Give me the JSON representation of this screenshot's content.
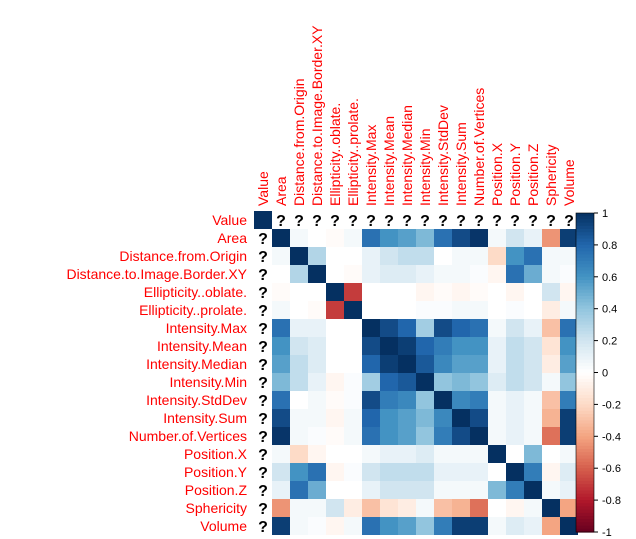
{
  "chart_data": {
    "type": "heatmap",
    "title": "",
    "labels": [
      "Value",
      "Area",
      "Distance.from.Origin",
      "Distance.to.Image.Border.XY",
      "Ellipticity..oblate.",
      "Ellipticity..prolate.",
      "Intensity.Max",
      "Intensity.Mean",
      "Intensity.Median",
      "Intensity.Min",
      "Intensity.StdDev",
      "Intensity.Sum",
      "Number.of.Vertices",
      "Position.X",
      "Position.Y",
      "Position.Z",
      "Sphericity",
      "Volume"
    ],
    "missing_symbol": "?",
    "missing_diagonal_value": 1,
    "matrix": [
      [
        1,
        null,
        null,
        null,
        null,
        null,
        null,
        null,
        null,
        null,
        null,
        null,
        null,
        null,
        null,
        null,
        null,
        null
      ],
      [
        null,
        1,
        0.05,
        0.0,
        -0.02,
        0.05,
        0.75,
        0.6,
        0.55,
        0.45,
        0.75,
        0.9,
        0.98,
        0.05,
        0.2,
        0.1,
        -0.45,
        0.95
      ],
      [
        null,
        0.05,
        1,
        0.3,
        0.0,
        0.0,
        0.1,
        0.2,
        0.25,
        0.25,
        0.0,
        0.05,
        0.05,
        -0.2,
        0.6,
        0.75,
        0.05,
        0.05
      ],
      [
        null,
        0.0,
        0.3,
        1,
        0.0,
        -0.02,
        0.1,
        0.15,
        0.15,
        0.1,
        0.05,
        0.05,
        0.02,
        -0.05,
        0.75,
        0.5,
        0.05,
        0.02
      ],
      [
        null,
        -0.02,
        0.0,
        0.0,
        1,
        -0.7,
        0.0,
        0.0,
        0.0,
        -0.05,
        -0.02,
        -0.05,
        -0.02,
        0.0,
        -0.05,
        0.0,
        0.2,
        -0.05
      ],
      [
        null,
        0.05,
        0.0,
        -0.02,
        -0.7,
        1,
        0.0,
        0.0,
        0.0,
        0.02,
        0.02,
        0.05,
        0.05,
        0.0,
        0.02,
        0.0,
        -0.1,
        0.05
      ],
      [
        null,
        0.75,
        0.1,
        0.1,
        0.0,
        0.0,
        1,
        0.9,
        0.8,
        0.35,
        0.9,
        0.8,
        0.75,
        0.05,
        0.2,
        0.1,
        -0.3,
        0.75
      ],
      [
        null,
        0.6,
        0.2,
        0.15,
        0.0,
        0.0,
        0.9,
        1,
        0.95,
        0.8,
        0.7,
        0.6,
        0.6,
        0.1,
        0.25,
        0.2,
        -0.15,
        0.6
      ],
      [
        null,
        0.55,
        0.25,
        0.15,
        0.0,
        0.0,
        0.8,
        0.95,
        1,
        0.85,
        0.65,
        0.55,
        0.55,
        0.1,
        0.25,
        0.2,
        -0.1,
        0.55
      ],
      [
        null,
        0.45,
        0.25,
        0.1,
        -0.05,
        0.02,
        0.35,
        0.8,
        0.85,
        1,
        0.4,
        0.45,
        0.4,
        0.15,
        0.25,
        0.2,
        0.05,
        0.4
      ],
      [
        null,
        0.75,
        0.0,
        0.05,
        -0.02,
        0.02,
        0.9,
        0.7,
        0.65,
        0.4,
        1,
        0.65,
        0.7,
        0.05,
        0.1,
        0.05,
        -0.3,
        0.7
      ],
      [
        null,
        0.9,
        0.05,
        0.05,
        -0.05,
        0.05,
        0.8,
        0.6,
        0.55,
        0.45,
        0.65,
        1,
        0.9,
        0.05,
        0.1,
        0.05,
        -0.35,
        0.95
      ],
      [
        null,
        0.98,
        0.05,
        0.02,
        -0.02,
        0.05,
        0.75,
        0.6,
        0.55,
        0.4,
        0.7,
        0.9,
        1,
        0.05,
        0.1,
        0.05,
        -0.55,
        0.95
      ],
      [
        null,
        0.05,
        -0.2,
        -0.05,
        0.0,
        0.0,
        0.05,
        0.1,
        0.1,
        0.15,
        0.05,
        0.05,
        0.05,
        1,
        0.0,
        0.45,
        0.0,
        0.05
      ],
      [
        null,
        0.2,
        0.6,
        0.75,
        -0.05,
        0.02,
        0.2,
        0.25,
        0.25,
        0.25,
        0.1,
        0.1,
        0.1,
        0.0,
        1,
        0.7,
        -0.05,
        0.15
      ],
      [
        null,
        0.1,
        0.75,
        0.5,
        0.0,
        0.0,
        0.1,
        0.2,
        0.2,
        0.2,
        0.05,
        0.05,
        0.05,
        0.45,
        0.7,
        1,
        0.05,
        0.1
      ],
      [
        null,
        -0.45,
        0.05,
        0.05,
        0.2,
        -0.1,
        -0.3,
        -0.15,
        -0.1,
        0.05,
        -0.3,
        -0.35,
        -0.55,
        0.0,
        -0.05,
        0.05,
        1,
        -0.4
      ],
      [
        null,
        0.95,
        0.05,
        0.02,
        -0.05,
        0.05,
        0.75,
        0.6,
        0.55,
        0.4,
        0.7,
        0.95,
        0.95,
        0.05,
        0.15,
        0.1,
        -0.4,
        1
      ]
    ],
    "color_scale": {
      "range": [
        -1,
        1
      ],
      "ticks": [
        -1,
        -0.8,
        -0.6,
        -0.4,
        -0.2,
        0,
        0.2,
        0.4,
        0.6,
        0.8,
        1
      ],
      "tick_labels": [
        "-1",
        "-0.8",
        "-0.6",
        "-0.4",
        "-0.2",
        "0",
        "0.2",
        "0.4",
        "0.6",
        "0.8",
        "1"
      ],
      "stops": [
        {
          "v": -1.0,
          "c": "#67001F"
        },
        {
          "v": -0.8,
          "c": "#B2182B"
        },
        {
          "v": -0.6,
          "c": "#D6604D"
        },
        {
          "v": -0.4,
          "c": "#F4A582"
        },
        {
          "v": -0.2,
          "c": "#FDDBC7"
        },
        {
          "v": 0.0,
          "c": "#FFFFFF"
        },
        {
          "v": 0.2,
          "c": "#D1E5F0"
        },
        {
          "v": 0.4,
          "c": "#92C5DE"
        },
        {
          "v": 0.6,
          "c": "#4393C3"
        },
        {
          "v": 0.8,
          "c": "#2166AC"
        },
        {
          "v": 1.0,
          "c": "#053061"
        }
      ]
    },
    "label_color": "#FF0000",
    "legend_position": "right"
  }
}
